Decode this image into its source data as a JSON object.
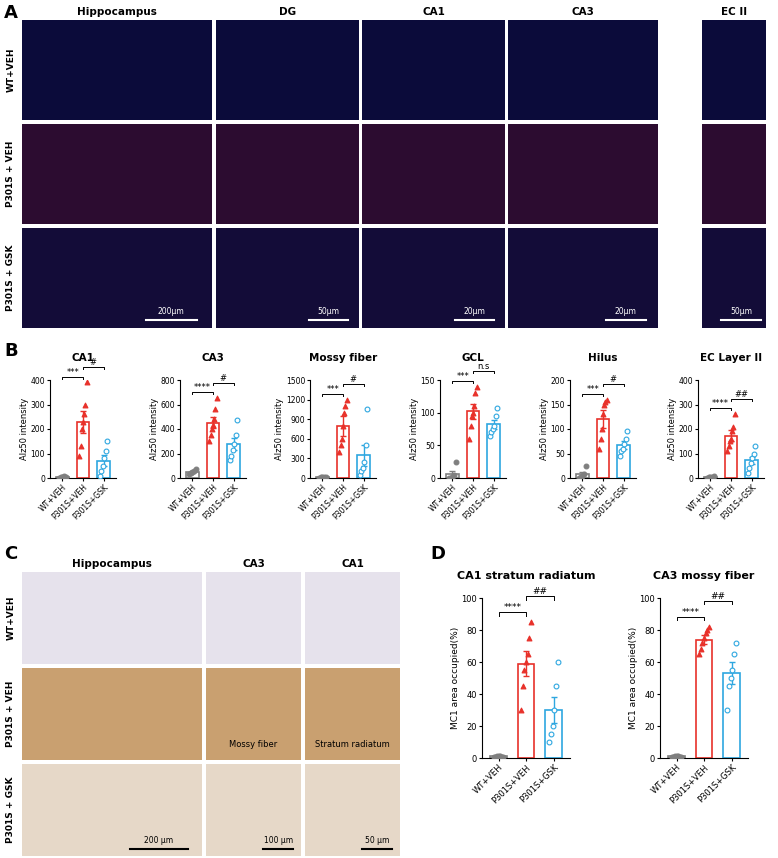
{
  "panel_labels": [
    "A",
    "B",
    "C",
    "D"
  ],
  "image_panels": [
    {
      "columns": [
        "Hippocampus",
        "DG",
        "CA1",
        "CA3",
        "EC II"
      ],
      "rows": [
        "WT+VEH",
        "P301S + VEH",
        "P301S + GSK"
      ],
      "scale_bars": [
        "200μm",
        "50μm",
        "20μm",
        "20μm",
        "50μm"
      ]
    },
    {
      "columns": [
        "Hippocampus",
        "CA3",
        "CA1"
      ],
      "rows": [
        "WT+VEH",
        "P301S + VEH",
        "P301S + GSK"
      ],
      "region_labels": [
        "Mossy fiber",
        "Stratum radiatum"
      ],
      "scale_bars": [
        "200 μm",
        "100 μm",
        "50 μm"
      ]
    }
  ],
  "chart_data": [
    {
      "type": "bar",
      "title": "CA1",
      "ylabel": "Alz50 intensity",
      "categories": [
        "WT+VEH",
        "P301S+VEH",
        "P301S+GSK"
      ],
      "values": [
        4,
        228,
        71
      ],
      "errors": [
        2,
        45,
        22
      ],
      "points": [
        [
          2,
          3,
          5,
          8,
          3
        ],
        [
          90,
          130,
          200,
          230,
          260,
          300,
          390
        ],
        [
          10,
          30,
          50,
          80,
          110,
          150
        ]
      ],
      "colors": [
        "#7f7f7f",
        "#e8312a",
        "#2ea7e0"
      ],
      "ylim": [
        0,
        400
      ],
      "yticks": [
        0,
        100,
        200,
        300,
        400
      ],
      "annotations": [
        {
          "pair": [
            0,
            1
          ],
          "label": "***"
        },
        {
          "pair": [
            1,
            2
          ],
          "label": "#"
        }
      ]
    },
    {
      "type": "bar",
      "title": "CA3",
      "ylabel": "Alz50 intensity",
      "categories": [
        "WT+VEH",
        "P301S+VEH",
        "P301S+GSK"
      ],
      "values": [
        50,
        453,
        277
      ],
      "errors": [
        8,
        45,
        50
      ],
      "points": [
        [
          30,
          40,
          50,
          60,
          70
        ],
        [
          300,
          350,
          400,
          430,
          480,
          560,
          650
        ],
        [
          150,
          180,
          230,
          280,
          350,
          470
        ]
      ],
      "colors": [
        "#7f7f7f",
        "#e8312a",
        "#2ea7e0"
      ],
      "ylim": [
        0,
        800
      ],
      "yticks": [
        0,
        200,
        400,
        600,
        800
      ],
      "annotations": [
        {
          "pair": [
            0,
            1
          ],
          "label": "****"
        },
        {
          "pair": [
            1,
            2
          ],
          "label": "#"
        }
      ]
    },
    {
      "type": "bar",
      "title": "Mossy fiber",
      "ylabel": "Alz50 intensity",
      "categories": [
        "WT+VEH",
        "P301S+VEH",
        "P301S+GSK"
      ],
      "values": [
        10,
        800,
        350
      ],
      "errors": [
        3,
        150,
        160
      ],
      "points": [
        [
          5,
          8,
          10,
          12,
          15
        ],
        [
          400,
          500,
          600,
          800,
          1000,
          1100,
          1200
        ],
        [
          50,
          100,
          150,
          250,
          500,
          1050
        ]
      ],
      "colors": [
        "#7f7f7f",
        "#e8312a",
        "#2ea7e0"
      ],
      "ylim": [
        0,
        1500
      ],
      "yticks": [
        0,
        300,
        600,
        900,
        1200,
        1500
      ],
      "annotations": [
        {
          "pair": [
            0,
            1
          ],
          "label": "***"
        },
        {
          "pair": [
            1,
            2
          ],
          "label": "#"
        }
      ]
    },
    {
      "type": "bar",
      "title": "GCL",
      "ylabel": "Alz50 intensity",
      "categories": [
        "WT+VEH",
        "P301S+VEH",
        "P301S+GSK"
      ],
      "values": [
        6,
        102,
        82
      ],
      "errors": [
        4,
        12,
        7
      ],
      "points": [
        [
          0,
          0,
          2,
          5,
          25
        ],
        [
          60,
          80,
          95,
          100,
          110,
          130,
          140
        ],
        [
          65,
          70,
          75,
          80,
          95,
          107
        ]
      ],
      "colors": [
        "#7f7f7f",
        "#e8312a",
        "#2ea7e0"
      ],
      "ylim": [
        0,
        150
      ],
      "yticks": [
        0,
        50,
        100,
        150
      ],
      "annotations": [
        {
          "pair": [
            0,
            1
          ],
          "label": "***"
        },
        {
          "pair": [
            1,
            2
          ],
          "label": "n.s"
        }
      ]
    },
    {
      "type": "bar",
      "title": "Hilus",
      "ylabel": "Alz50 intensity",
      "categories": [
        "WT+VEH",
        "P301S+VEH",
        "P301S+GSK"
      ],
      "values": [
        8,
        120,
        68
      ],
      "errors": [
        4,
        18,
        8
      ],
      "points": [
        [
          0,
          2,
          5,
          8,
          25
        ],
        [
          60,
          80,
          100,
          130,
          150,
          155,
          160
        ],
        [
          45,
          55,
          60,
          70,
          80,
          95
        ]
      ],
      "colors": [
        "#7f7f7f",
        "#e8312a",
        "#2ea7e0"
      ],
      "ylim": [
        0,
        200
      ],
      "yticks": [
        0,
        50,
        100,
        150,
        200
      ],
      "annotations": [
        {
          "pair": [
            0,
            1
          ],
          "label": "***"
        },
        {
          "pair": [
            1,
            2
          ],
          "label": "#"
        }
      ]
    },
    {
      "type": "bar",
      "title": "EC Layer II",
      "ylabel": "Alz50 intensity",
      "categories": [
        "WT+VEH",
        "P301S+VEH",
        "P301S+GSK"
      ],
      "values": [
        5,
        172,
        72
      ],
      "errors": [
        1,
        22,
        15
      ],
      "points": [
        [
          2,
          3,
          5,
          6,
          8
        ],
        [
          110,
          130,
          150,
          160,
          190,
          210,
          260
        ],
        [
          20,
          40,
          60,
          80,
          100,
          130
        ]
      ],
      "colors": [
        "#7f7f7f",
        "#e8312a",
        "#2ea7e0"
      ],
      "ylim": [
        0,
        400
      ],
      "yticks": [
        0,
        100,
        200,
        300,
        400
      ],
      "annotations": [
        {
          "pair": [
            0,
            1
          ],
          "label": "****"
        },
        {
          "pair": [
            1,
            2
          ],
          "label": "##"
        }
      ]
    },
    {
      "type": "bar",
      "title": "CA1 stratum radiatum",
      "ylabel": "MC1 area occupied(%)",
      "categories": [
        "WT+VEH",
        "P301S+VEH",
        "P301S+GSK"
      ],
      "values": [
        1,
        59,
        30
      ],
      "errors": [
        0.2,
        8,
        8
      ],
      "points": [
        [
          0.5,
          0.8,
          1,
          1,
          1.2,
          0.6,
          0.9
        ],
        [
          30,
          45,
          55,
          60,
          65,
          75,
          85
        ],
        [
          10,
          15,
          20,
          30,
          45,
          60
        ]
      ],
      "colors": [
        "#7f7f7f",
        "#e8312a",
        "#2ea7e0"
      ],
      "ylim": [
        0,
        100
      ],
      "yticks": [
        0,
        20,
        40,
        60,
        80,
        100
      ],
      "annotations": [
        {
          "pair": [
            0,
            1
          ],
          "label": "****"
        },
        {
          "pair": [
            1,
            2
          ],
          "label": "##"
        }
      ]
    },
    {
      "type": "bar",
      "title": "CA3 mossy fiber",
      "ylabel": "MC1 area occupied(%)",
      "categories": [
        "WT+VEH",
        "P301S+VEH",
        "P301S+GSK"
      ],
      "values": [
        1,
        74,
        53
      ],
      "errors": [
        0.2,
        3,
        7
      ],
      "points": [
        [
          0.5,
          0.8,
          1,
          1,
          1.2,
          0.6,
          0.9
        ],
        [
          65,
          68,
          72,
          75,
          78,
          80,
          82
        ],
        [
          30,
          45,
          50,
          55,
          65,
          72
        ]
      ],
      "colors": [
        "#7f7f7f",
        "#e8312a",
        "#2ea7e0"
      ],
      "ylim": [
        0,
        100
      ],
      "yticks": [
        0,
        20,
        40,
        60,
        80,
        100
      ],
      "annotations": [
        {
          "pair": [
            0,
            1
          ],
          "label": "****"
        },
        {
          "pair": [
            1,
            2
          ],
          "label": "##"
        }
      ]
    }
  ]
}
